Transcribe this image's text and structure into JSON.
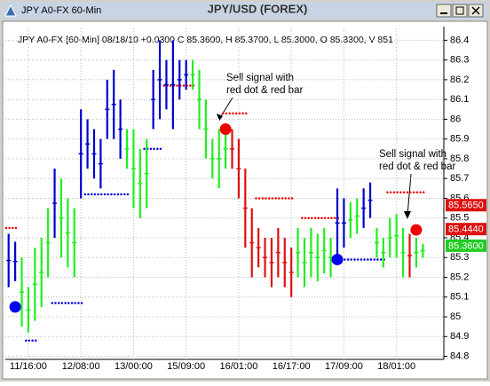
{
  "window_title": "JPY A0-FX 60-Min",
  "chart_data": {
    "type": "ohlc",
    "title": "JPY/USD (FOREX)",
    "info": "JPY A0-FX [60-Min] 08/18/10 +0.0300 C 85.3600, H 85.3700, L 85.3000, O 85.3300, V 851",
    "categories": [
      null,
      null,
      null,
      "11/16:00",
      null,
      null,
      null,
      null,
      null,
      null,
      null,
      "12/08:00",
      null,
      null,
      null,
      null,
      null,
      null,
      null,
      "13/00:00",
      null,
      null,
      null,
      null,
      null,
      null,
      null,
      "15/09:00",
      null,
      null,
      null,
      null,
      null,
      null,
      null,
      "16/01:00",
      null,
      null,
      null,
      null,
      null,
      null,
      null,
      "16/17:00",
      null,
      null,
      null,
      null,
      null,
      null,
      null,
      "17/09:00",
      null,
      null,
      null,
      null,
      null,
      null,
      null,
      "18/01:00",
      null,
      null,
      null,
      null
    ],
    "low": [
      85.15,
      85.18,
      84.95,
      84.92,
      84.98,
      85.05,
      85.2,
      85.4,
      85.3,
      85.25,
      85.2,
      85.6,
      85.75,
      85.7,
      85.65,
      85.9,
      85.9,
      85.8,
      85.75,
      85.55,
      85.5,
      85.55,
      85.95,
      86.0,
      86.05,
      85.95,
      86.1,
      86.15,
      86.15,
      85.95,
      85.8,
      85.7,
      85.65,
      85.75,
      85.75,
      85.6,
      85.35,
      85.2,
      85.25,
      85.2,
      85.15,
      85.2,
      85.15,
      85.1,
      85.2,
      85.15,
      85.2,
      85.18,
      85.22,
      85.2,
      85.3,
      85.35,
      85.4,
      85.42,
      85.45,
      85.5,
      85.3,
      85.25,
      85.3,
      85.3,
      85.2,
      85.2,
      85.25,
      85.3
    ],
    "high": [
      85.42,
      85.38,
      85.3,
      85.15,
      85.35,
      85.4,
      85.55,
      85.75,
      85.7,
      85.6,
      85.55,
      86.05,
      86.0,
      85.95,
      85.9,
      86.2,
      86.25,
      86.1,
      85.95,
      85.95,
      85.85,
      85.9,
      86.25,
      86.4,
      86.3,
      86.4,
      86.3,
      86.3,
      86.3,
      86.25,
      86.1,
      85.9,
      85.95,
      85.95,
      85.95,
      85.9,
      85.75,
      85.55,
      85.45,
      85.4,
      85.4,
      85.45,
      85.4,
      85.35,
      85.45,
      85.4,
      85.45,
      85.42,
      85.45,
      85.4,
      85.65,
      85.6,
      85.58,
      85.6,
      85.65,
      85.68,
      85.45,
      85.4,
      85.5,
      85.52,
      85.45,
      85.42,
      85.4,
      85.37
    ],
    "bar_colors": [
      "#0000cc",
      "#0000cc",
      "#22ee22",
      "#22ee22",
      "#22ee22",
      "#22ee22",
      "#22ee22",
      "#0000cc",
      "#22ee22",
      "#22ee22",
      "#22ee22",
      "#0000cc",
      "#0000cc",
      "#0000cc",
      "#0000cc",
      "#0000cc",
      "#0000cc",
      "#0000cc",
      "#22ee22",
      "#22ee22",
      "#22ee22",
      "#22ee22",
      "#0000cc",
      "#0000cc",
      "#0000cc",
      "#0000cc",
      "#0000cc",
      "#0000cc",
      "#22ee22",
      "#22ee22",
      "#22ee22",
      "#22ee22",
      "#22ee22",
      "#22ee22",
      "#dd1111",
      "#dd1111",
      "#dd1111",
      "#dd1111",
      "#dd1111",
      "#dd1111",
      "#dd1111",
      "#dd1111",
      "#dd1111",
      "#dd1111",
      "#22ee22",
      "#22ee22",
      "#22ee22",
      "#22ee22",
      "#22ee22",
      "#22ee22",
      "#0000cc",
      "#0000cc",
      "#22ee22",
      "#22ee22",
      "#0000cc",
      "#0000cc",
      "#22ee22",
      "#22ee22",
      "#22ee22",
      "#22ee22",
      "#22ee22",
      "#dd1111",
      "#22ee22",
      "#22ee22"
    ],
    "stops": [
      85.45,
      85.45,
      null,
      84.88,
      84.88,
      null,
      null,
      85.07,
      85.07,
      85.07,
      85.07,
      85.07,
      85.62,
      85.62,
      85.62,
      85.62,
      85.62,
      85.62,
      85.62,
      null,
      null,
      85.85,
      85.85,
      85.85,
      86.17,
      86.17,
      86.17,
      86.17,
      86.17,
      null,
      null,
      null,
      null,
      86.03,
      86.03,
      86.03,
      86.03,
      null,
      85.6,
      85.6,
      85.6,
      85.6,
      85.6,
      85.6,
      null,
      85.5,
      85.5,
      85.5,
      85.5,
      85.5,
      85.5,
      85.29,
      85.29,
      85.29,
      85.29,
      85.29,
      85.29,
      85.29,
      85.63,
      85.63,
      85.63,
      85.63,
      85.63,
      85.63
    ],
    "stop_colors": [
      "#ee0000",
      "#ee0000",
      null,
      "#0000dd",
      "#0000dd",
      null,
      null,
      "#0000dd",
      "#0000dd",
      "#0000dd",
      "#0000dd",
      "#0000dd",
      "#0000dd",
      "#0000dd",
      "#0000dd",
      "#0000dd",
      "#0000dd",
      "#0000dd",
      "#0000dd",
      null,
      null,
      "#0000dd",
      "#0000dd",
      "#0000dd",
      "#ee0000",
      "#ee0000",
      "#ee0000",
      "#ee0000",
      "#ee0000",
      null,
      null,
      null,
      null,
      "#ee0000",
      "#ee0000",
      "#ee0000",
      "#ee0000",
      null,
      "#ee0000",
      "#ee0000",
      "#ee0000",
      "#ee0000",
      "#ee0000",
      "#ee0000",
      null,
      "#ee0000",
      "#ee0000",
      "#ee0000",
      "#ee0000",
      "#ee0000",
      "#ee0000",
      "#0000dd",
      "#0000dd",
      "#0000dd",
      "#0000dd",
      "#0000dd",
      "#0000dd",
      "#0000dd",
      "#ee0000",
      "#ee0000",
      "#ee0000",
      "#ee0000",
      "#ee0000",
      "#ee0000"
    ],
    "signals": [
      {
        "index": 1,
        "value": 85.05,
        "color": "#0000ee"
      },
      {
        "index": 33,
        "value": 85.95,
        "color": "#ee0000"
      },
      {
        "index": 50,
        "value": 85.29,
        "color": "#0000ee"
      },
      {
        "index": 62,
        "value": 85.44,
        "color": "#ee0000"
      }
    ],
    "price_tags": [
      {
        "value": 85.565,
        "label": "85.5650",
        "color": "#dd1111"
      },
      {
        "value": 85.444,
        "label": "85.4440",
        "color": "#dd1111"
      },
      {
        "value": 85.36,
        "label": "85.3600",
        "color": "#22cc22"
      }
    ],
    "annotations": [
      [
        "Sell signal with",
        "red dot & red bar"
      ],
      [
        "Sell signal with",
        "red dot & red bar"
      ]
    ],
    "ylim": [
      84.78,
      86.46
    ],
    "yticks": [
      84.8,
      84.9,
      85,
      85.1,
      85.2,
      85.3,
      85.4,
      85.5,
      85.6,
      85.7,
      85.8,
      85.9,
      86,
      86.1,
      86.2,
      86.3,
      86.4
    ],
    "grid": true
  }
}
